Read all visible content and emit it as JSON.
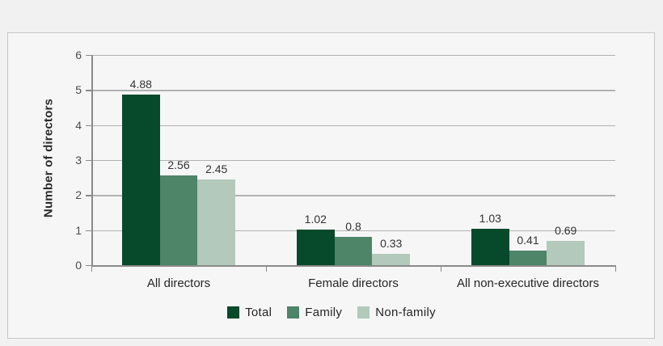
{
  "page": {
    "background_color": "#f1f1f2",
    "panel_background_color": "#f6f6f7",
    "panel_border_color": "#c6c6c8"
  },
  "colors": {
    "gridline": "#b1b1b1",
    "axis": "#8a8a8a",
    "tick_text": "#4d4d4d",
    "label_text": "#262626",
    "value_label_text": "#333333"
  },
  "chart_data": {
    "type": "bar",
    "title": "",
    "xlabel": "",
    "ylabel": "Number of directors",
    "ylim": [
      0,
      6
    ],
    "yticks": [
      0,
      1,
      2,
      3,
      4,
      5,
      6
    ],
    "grid": true,
    "legend_position": "bottom",
    "categories": [
      "All directors",
      "Female directors",
      "All non-executive directors"
    ],
    "series": [
      {
        "name": "Total",
        "color": "#07492b",
        "values": [
          4.88,
          1.02,
          1.03
        ],
        "value_labels": [
          "4.88",
          "1.02",
          "1.03"
        ]
      },
      {
        "name": "Family",
        "color": "#4e8468",
        "values": [
          2.56,
          0.8,
          0.41
        ],
        "value_labels": [
          "2.56",
          "0.8",
          "0.41"
        ]
      },
      {
        "name": "Non-family",
        "color": "#b3c9bc",
        "values": [
          2.45,
          0.33,
          0.69
        ],
        "value_labels": [
          "2.45",
          "0.33",
          "0.69"
        ]
      }
    ]
  }
}
